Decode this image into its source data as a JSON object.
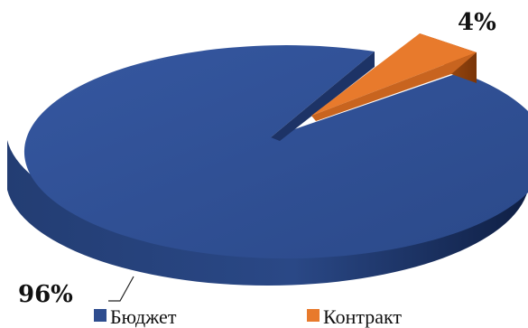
{
  "chart_data": {
    "type": "pie",
    "title": "",
    "legend_position": "bottom",
    "slices": [
      {
        "name": "Бюджет",
        "value": 96,
        "label": "96%",
        "color": "#2E4D8F"
      },
      {
        "name": "Контракт",
        "value": 4,
        "label": "4%",
        "color": "#E87A2C"
      }
    ]
  }
}
